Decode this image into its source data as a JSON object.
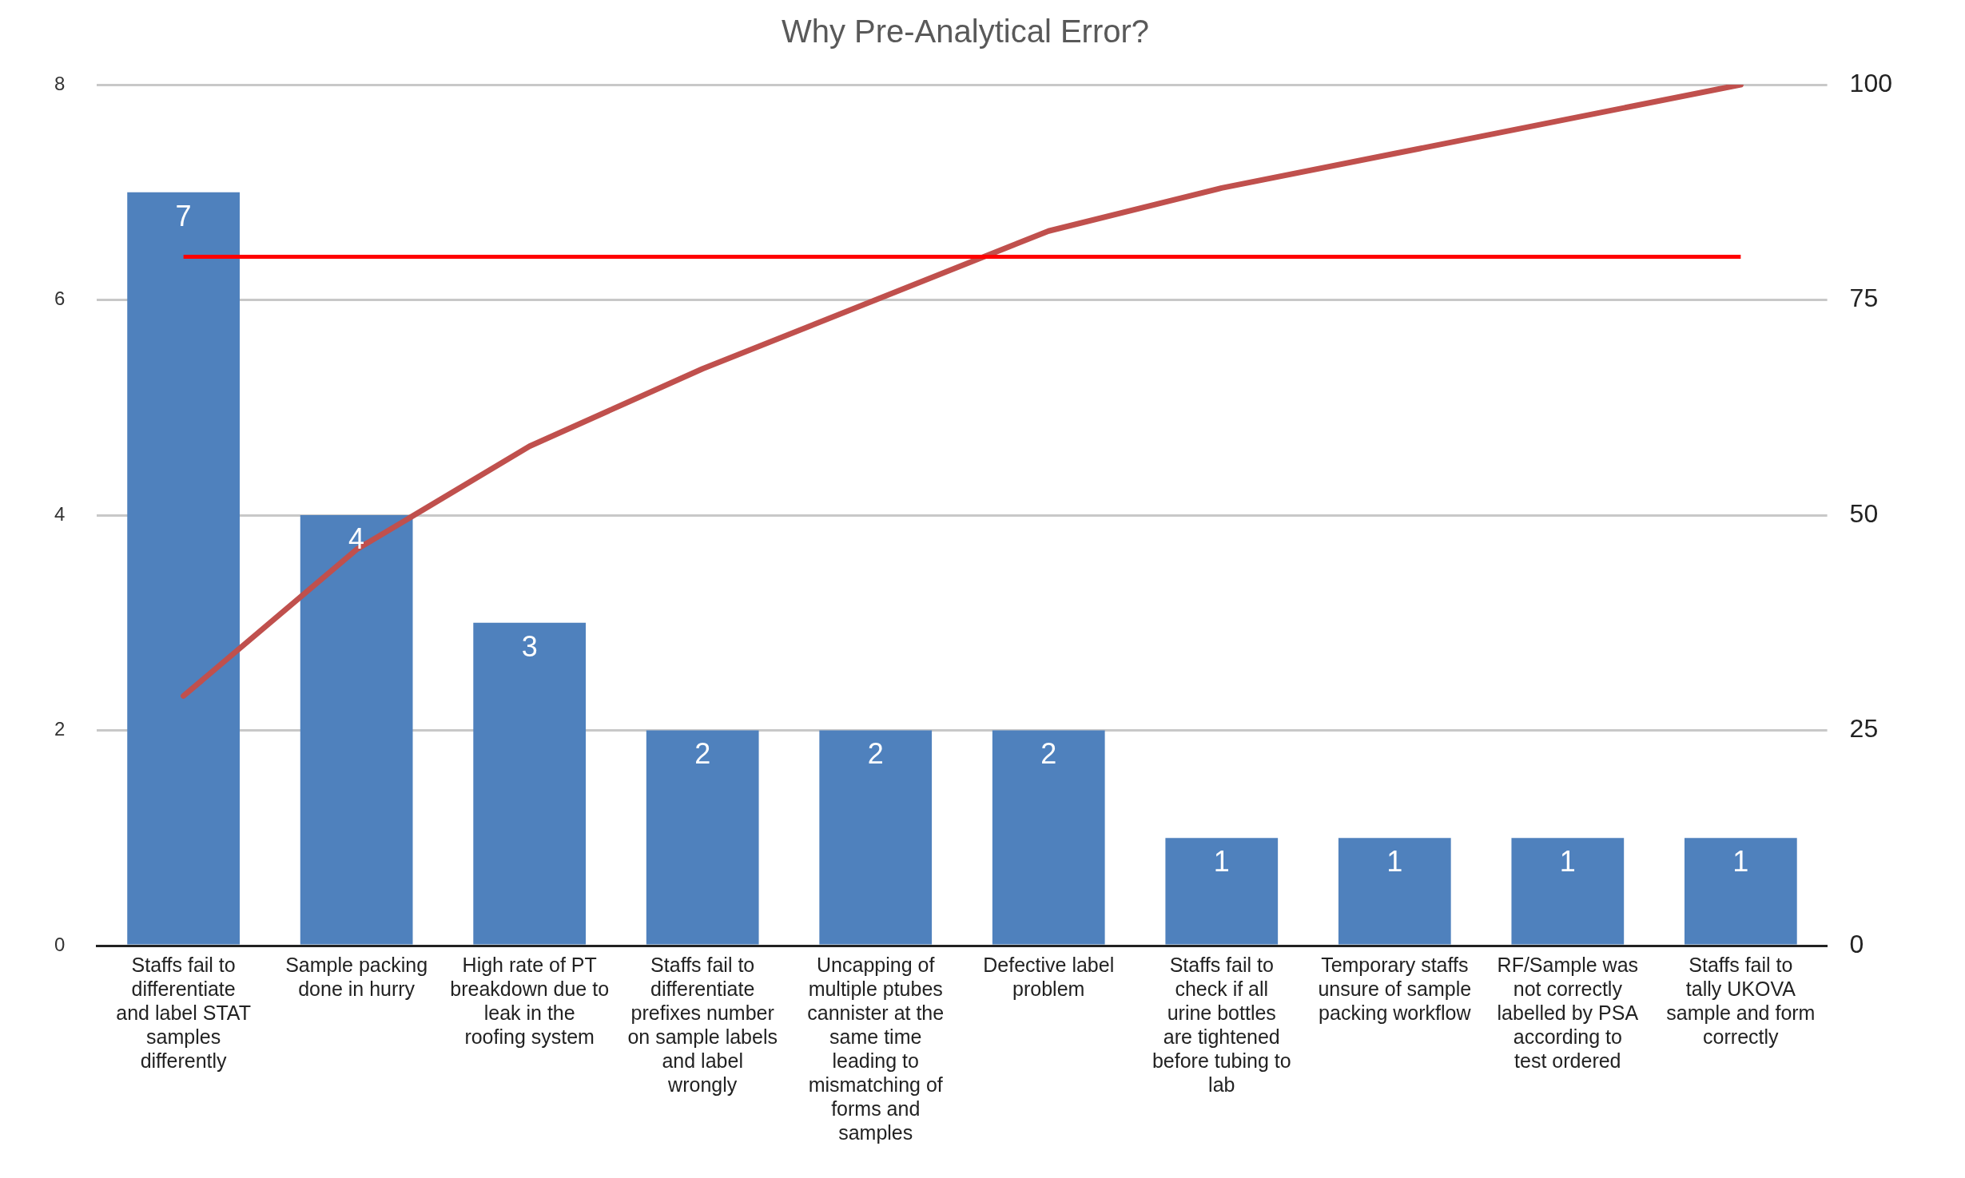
{
  "chart_data": {
    "type": "bar",
    "title": "Why Pre-Analytical Error?",
    "categories": [
      "Staffs fail to differentiate and label STAT samples differently",
      "Sample packing done in hurry",
      "High rate of PT breakdown due to leak in the roofing system",
      "Staffs fail to differentiate prefixes number on sample labels and label wrongly",
      "Uncapping of multiple ptubes cannister at the same time leading to mismatching of forms and samples",
      "Defective label problem",
      "Staffs fail to check if all urine bottles are tightened before tubing to lab",
      "Temporary staffs unsure of sample packing workflow",
      "RF/Sample was not correctly labelled by PSA according to test ordered",
      "Staffs fail to tally UKOVA sample and form correctly"
    ],
    "series": [
      {
        "color": "#4f81bd",
        "values": [
          7,
          4,
          3,
          2,
          2,
          2,
          1,
          1,
          1,
          1
        ],
        "value_labels": [
          "7",
          "4",
          "3",
          "2",
          "2",
          "2",
          "1",
          "1",
          "1",
          "1"
        ]
      },
      {
        "type": "line",
        "axis": "y2",
        "color": "#c0504d",
        "values": [
          29,
          46,
          58,
          67,
          75,
          83,
          88,
          92,
          96,
          100
        ]
      }
    ],
    "ylim": [
      0,
      8
    ],
    "yticks": [
      0,
      2,
      4,
      6,
      8
    ],
    "y2lim": [
      0,
      100
    ],
    "y2ticks": [
      0,
      25,
      50,
      75,
      100
    ],
    "ref_lines": [
      {
        "axis": "y2",
        "value": 80,
        "color": "#ff0000"
      }
    ],
    "grid": "y",
    "legend": false,
    "marker": "none"
  }
}
